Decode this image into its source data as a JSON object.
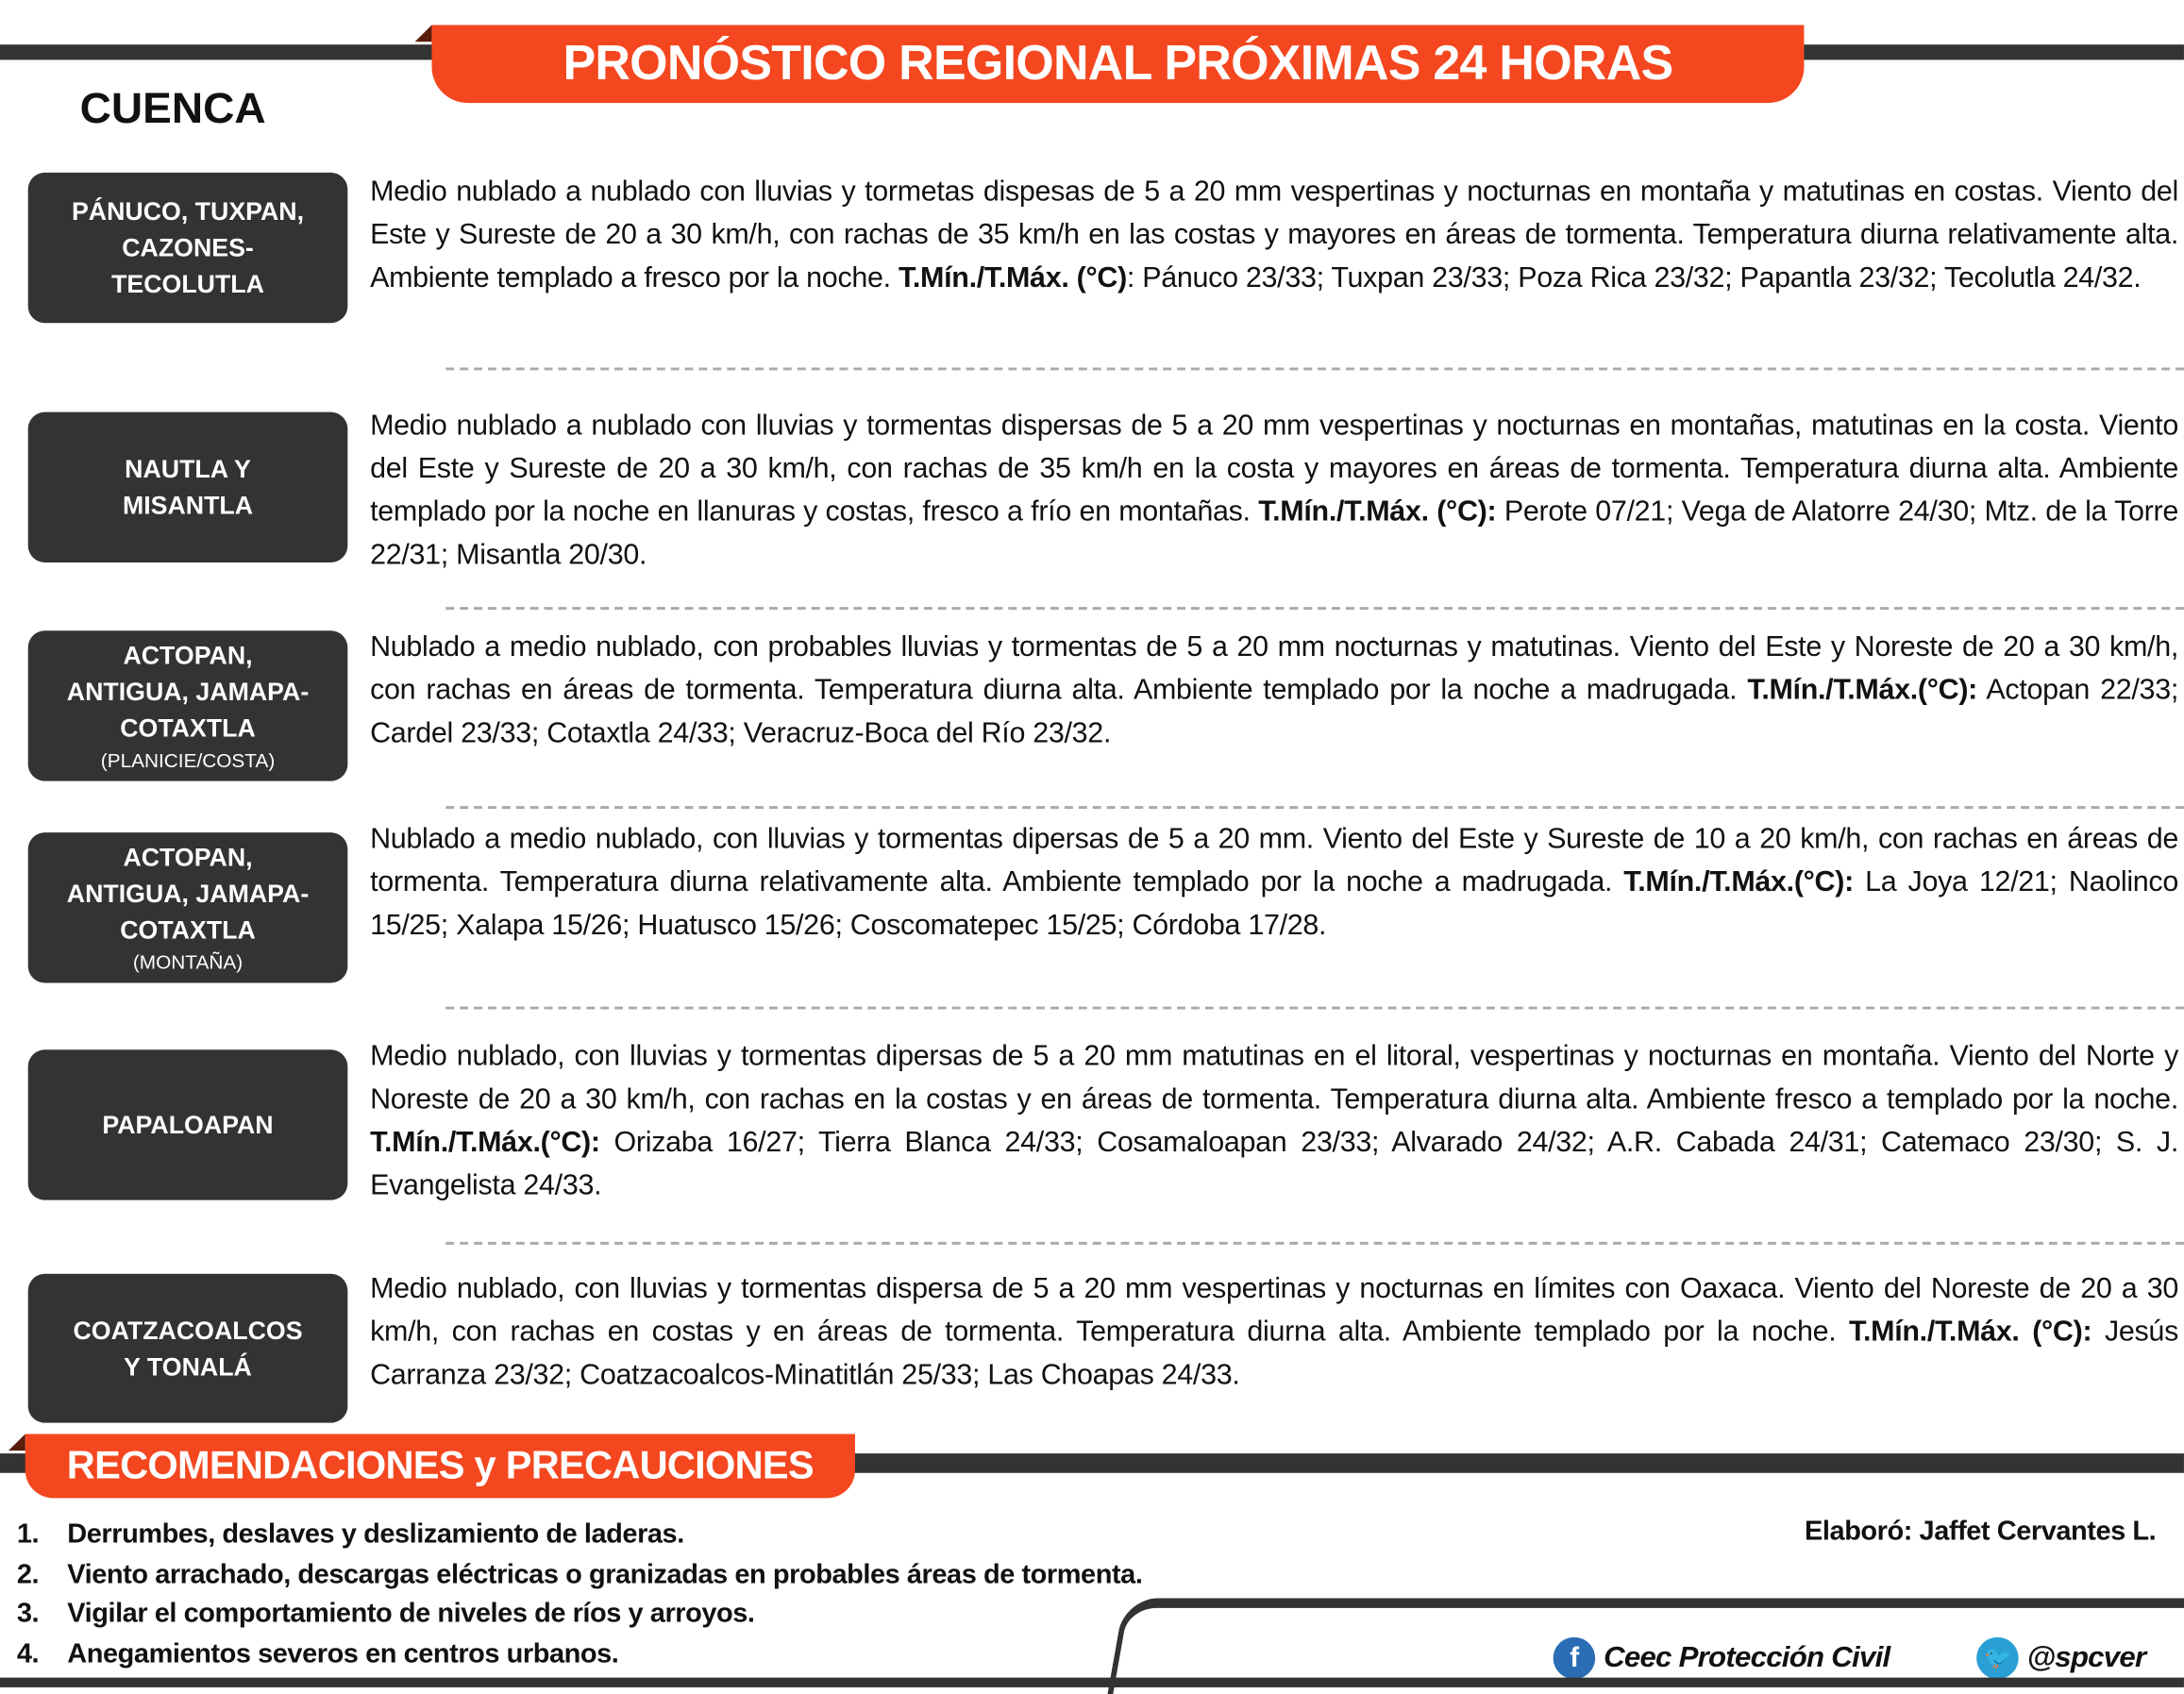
{
  "header": {
    "title": "PRONÓSTICO REGIONAL PRÓXIMAS 24 HORAS",
    "column_label": "CUENCA"
  },
  "basins": [
    {
      "label": [
        "PÁNUCO, TUXPAN,",
        "CAZONES-",
        "TECOLUTLA"
      ],
      "sub": "",
      "pre": "Medio nublado a nublado con lluvias y tormetas dispesas de 5 a 20 mm vespertinas y nocturnas en montaña y matutinas en costas. Viento del Este y Sureste de 20 a 30 km/h, con rachas de 35 km/h en las costas y mayores en áreas de tormenta. Temperatura diurna relativamente alta. Ambiente templado a fresco por la noche. ",
      "bold": "T.Mín./T.Máx. (°C)",
      "post": ": Pánuco 23/33; Tuxpan 23/33; Poza Rica 23/32; Papantla 23/32; Tecolutla 24/32."
    },
    {
      "label": [
        "NAUTLA Y",
        "MISANTLA"
      ],
      "sub": "",
      "pre": "Medio nublado a nublado con lluvias y tormentas dispersas de 5 a 20 mm vespertinas y nocturnas en montañas, matutinas en la costa. Viento del Este y Sureste de 20 a 30 km/h, con rachas de 35 km/h en la costa y mayores en áreas de tormenta. Temperatura diurna alta. Ambiente templado por la noche en llanuras y costas, fresco a frío en montañas. ",
      "bold": "T.Mín./T.Máx. (°C):",
      "post": " Perote 07/21; Vega de Alatorre 24/30; Mtz. de la Torre 22/31; Misantla 20/30."
    },
    {
      "label": [
        "ACTOPAN,",
        "ANTIGUA, JAMAPA-",
        "COTAXTLA"
      ],
      "sub": "(PLANICIE/COSTA)",
      "pre": "Nublado a medio nublado, con probables lluvias y tormentas de 5 a 20 mm nocturnas y matutinas. Viento del Este y Noreste de 20 a 30 km/h, con rachas en áreas de tormenta. Temperatura diurna alta. Ambiente templado por la noche a madrugada. ",
      "bold": "T.Mín./T.Máx.(°C):",
      "post": " Actopan 22/33; Cardel 23/33; Cotaxtla 24/33; Veracruz-Boca del Río 23/32."
    },
    {
      "label": [
        "ACTOPAN,",
        "ANTIGUA, JAMAPA-",
        "COTAXTLA"
      ],
      "sub": "(MONTAÑA)",
      "pre": "Nublado a medio nublado, con lluvias y tormentas dipersas de 5 a 20 mm. Viento del Este y Sureste de 10 a 20 km/h, con rachas en áreas de tormenta. Temperatura diurna relativamente alta. Ambiente templado por la noche a madrugada. ",
      "bold": "T.Mín./T.Máx.(°C):",
      "post": " La Joya 12/21; Naolinco 15/25; Xalapa 15/26; Huatusco 15/26; Coscomatepec 15/25; Córdoba 17/28."
    },
    {
      "label": [
        "PAPALOAPAN"
      ],
      "sub": "",
      "pre": "Medio nublado, con lluvias y tormentas dipersas de 5 a 20 mm matutinas en el litoral, vespertinas y nocturnas en montaña. Viento del Norte y Noreste de 20 a 30 km/h, con rachas en la costas y en áreas de tormenta. Temperatura diurna alta. Ambiente fresco a templado por la noche. ",
      "bold": "T.Mín./T.Máx.(°C):",
      "post": " Orizaba 16/27; Tierra Blanca 24/33; Cosamaloapan 23/33; Alvarado 24/32; A.R. Cabada 24/31; Catemaco 23/30; S. J. Evangelista 24/33."
    },
    {
      "label": [
        "COATZACOALCOS",
        "Y TONALÁ"
      ],
      "sub": "",
      "pre": "Medio nublado, con lluvias y tormentas dispersa de 5 a 20 mm vespertinas y nocturnas en límites con Oaxaca. Viento del Noreste de 20 a 30 km/h, con rachas en costas y en áreas de tormenta. Temperatura diurna alta. Ambiente templado por la noche. ",
      "bold": "T.Mín./T.Máx. (°C):",
      "post": " Jesús Carranza 23/32; Coatzacoalcos-Minatitlán 25/33; Las Choapas 24/33."
    }
  ],
  "recommendations": {
    "title": "RECOMENDACIONES y PRECAUCIONES",
    "items": [
      {
        "n": "1.",
        "text": "Derrumbes, deslaves y deslizamiento de laderas."
      },
      {
        "n": "2.",
        "text": "Viento arrachado, descargas eléctricas o granizadas en probables áreas de tormenta."
      },
      {
        "n": "3.",
        "text": "Vigilar el comportamiento de niveles de ríos y arroyos."
      },
      {
        "n": "4.",
        "text": "Anegamientos severos en centros urbanos."
      }
    ]
  },
  "footer": {
    "author": "Elaboró: Jaffet Cervantes L.",
    "facebook": "Ceec Protección Civil",
    "twitter": "@spcver",
    "facebook_icon": "facebook-icon",
    "twitter_icon": "twitter-icon",
    "facebook_color": "#2a6db5",
    "twitter_color": "#2a9fd6"
  },
  "colors": {
    "accent": "#f4471f",
    "dark": "#333333"
  }
}
